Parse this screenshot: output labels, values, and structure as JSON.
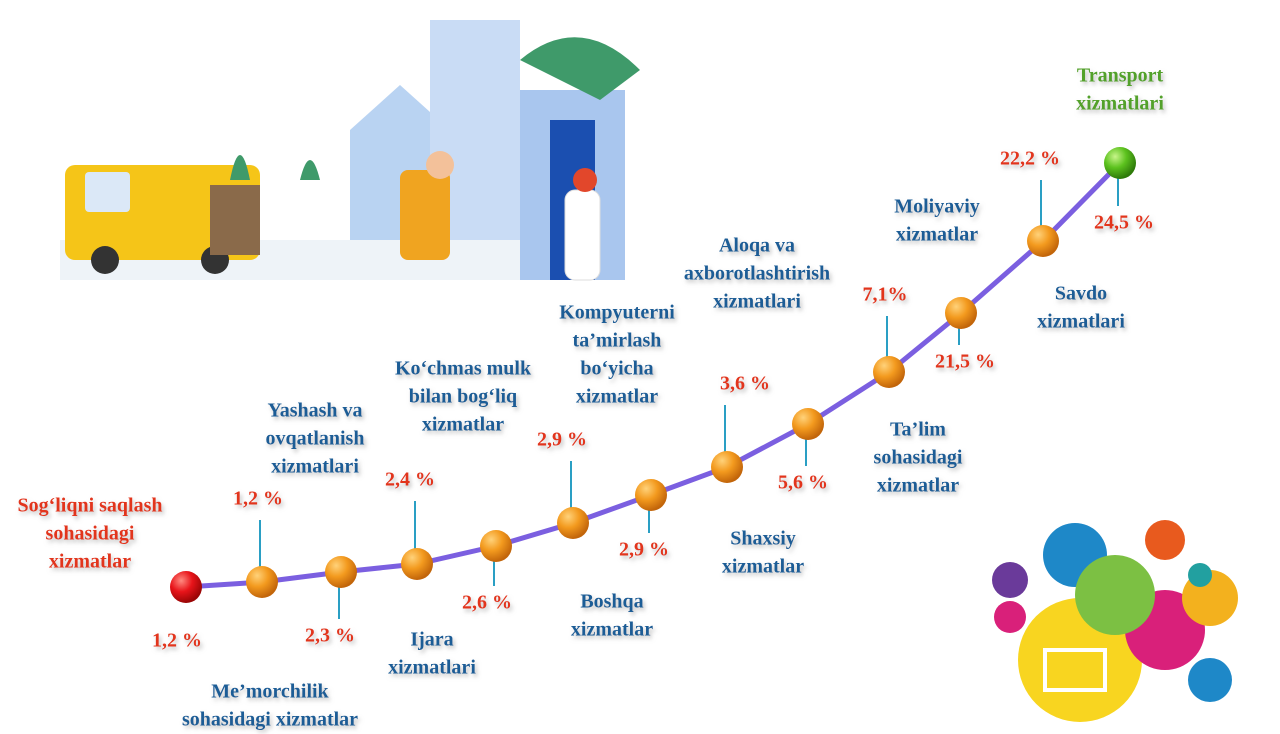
{
  "nodes": [
    {
      "label": [
        "Sog‘liqni saqlash",
        "sohasidagi",
        "xizmatlar"
      ],
      "value": "1,2 %"
    },
    {
      "label": [
        "Me’morchilik",
        "sohasidagi xizmatlar"
      ],
      "value": "1,2 %"
    },
    {
      "label": [
        "Yashash va",
        "ovqatlanish",
        "xizmatlari"
      ],
      "value": "2,3 %"
    },
    {
      "label": [
        "Ijara",
        "xizmatlari"
      ],
      "value": "2,4 %"
    },
    {
      "label": [
        "Ko‘chmas mulk",
        "bilan bog‘liq",
        "xizmatlar"
      ],
      "value": "2,6 %"
    },
    {
      "label": [
        "Boshqa",
        "xizmatlar"
      ],
      "value": "2,9 %"
    },
    {
      "label": [
        "Kompyuterni",
        "ta’mirlash",
        "bo‘yicha",
        "xizmatlar"
      ],
      "value": "2,9 %"
    },
    {
      "label": [
        "Shaxsiy",
        "xizmatlar"
      ],
      "value": "3,6 %"
    },
    {
      "label": [
        "Ta’lim",
        "sohasidagi",
        "xizmatlar"
      ],
      "value": "5,6 %"
    },
    {
      "label": [
        "Aloqa va",
        "axborotlashtirish",
        "xizmatlari"
      ],
      "value": "7,1%"
    },
    {
      "label": [
        "Savdo",
        "xizmatlari"
      ],
      "value": "21,5 %"
    },
    {
      "label": [
        "Moliyaviy",
        "xizmatlar"
      ],
      "value": "22,2 %"
    },
    {
      "label": [
        "Transport",
        "xizmatlari"
      ],
      "value": "24,5 %"
    }
  ]
}
